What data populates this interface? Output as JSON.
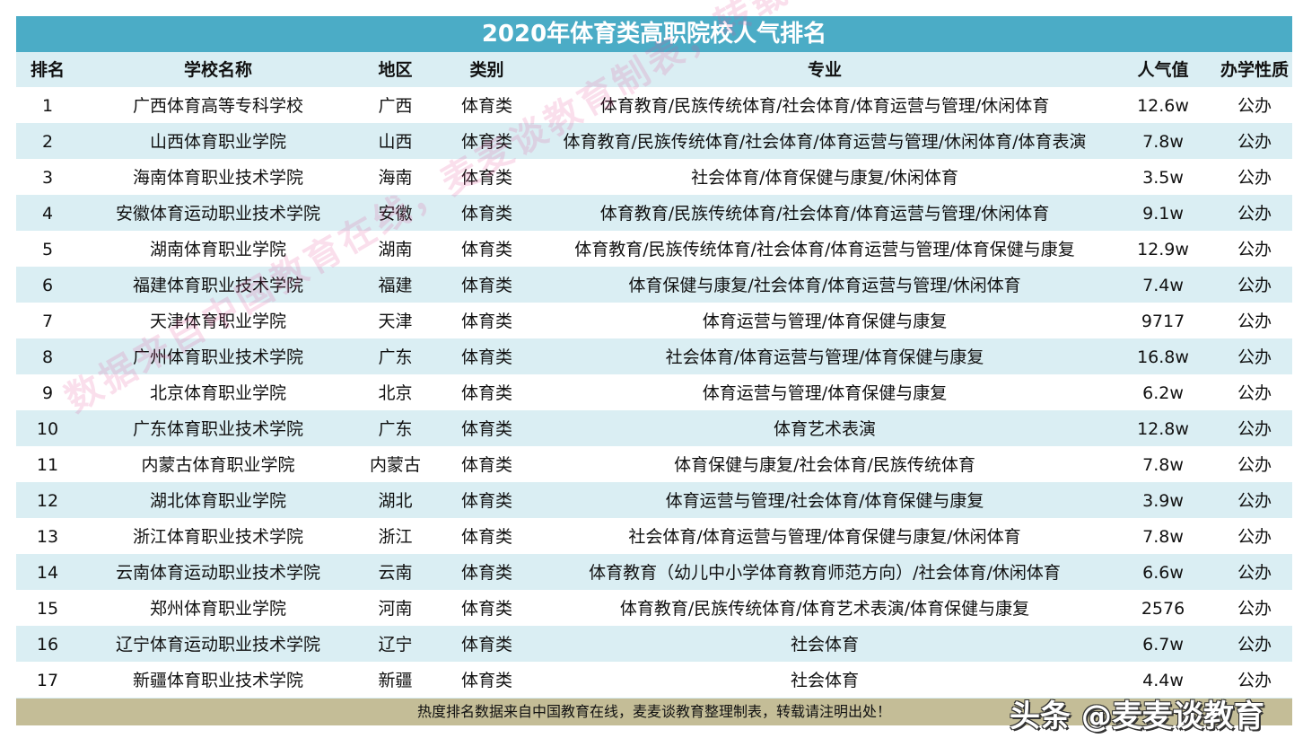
{
  "title": "2020年体育类高职院校人气排名",
  "headers": [
    "排名",
    "学校名称",
    "地区",
    "类别",
    "专业",
    "人气值",
    "办学性质"
  ],
  "rows": [
    [
      "1",
      "广西体育高等专科学校",
      "广西",
      "体育类",
      "体育教育/民族传统体育/社会体育/体育运营与管理/休闲体育",
      "12.6w",
      "公办"
    ],
    [
      "2",
      "山西体育职业学院",
      "山西",
      "体育类",
      "体育教育/民族传统体育/社会体育/体育运营与管理/休闲体育/体育表演",
      "7.8w",
      "公办"
    ],
    [
      "3",
      "海南体育职业技术学院",
      "海南",
      "体育类",
      "社会体育/体育保健与康复/休闲体育",
      "3.5w",
      "公办"
    ],
    [
      "4",
      "安徽体育运动职业技术学院",
      "安徽",
      "体育类",
      "体育教育/民族传统体育/社会体育/体育运营与管理/休闲体育",
      "9.1w",
      "公办"
    ],
    [
      "5",
      "湖南体育职业学院",
      "湖南",
      "体育类",
      "体育教育/民族传统体育/社会体育/体育运营与管理/体育保健与康复",
      "12.9w",
      "公办"
    ],
    [
      "6",
      "福建体育职业技术学院",
      "福建",
      "体育类",
      "体育保健与康复/社会体育/体育运营与管理/休闲体育",
      "7.4w",
      "公办"
    ],
    [
      "7",
      "天津体育职业学院",
      "天津",
      "体育类",
      "体育运营与管理/体育保健与康复",
      "9717",
      "公办"
    ],
    [
      "8",
      "广州体育职业技术学院",
      "广东",
      "体育类",
      "社会体育/体育运营与管理/体育保健与康复",
      "16.8w",
      "公办"
    ],
    [
      "9",
      "北京体育职业学院",
      "北京",
      "体育类",
      "体育运营与管理/体育保健与康复",
      "6.2w",
      "公办"
    ],
    [
      "10",
      "广东体育职业技术学院",
      "广东",
      "体育类",
      "体育艺术表演",
      "12.8w",
      "公办"
    ],
    [
      "11",
      "内蒙古体育职业学院",
      "内蒙古",
      "体育类",
      "体育保健与康复/社会体育/民族传统体育",
      "7.8w",
      "公办"
    ],
    [
      "12",
      "湖北体育职业学院",
      "湖北",
      "体育类",
      "体育运营与管理/社会体育/体育保健与康复",
      "3.9w",
      "公办"
    ],
    [
      "13",
      "浙江体育职业技术学院",
      "浙江",
      "体育类",
      "社会体育/体育运营与管理/体育保健与康复/休闲体育",
      "7.8w",
      "公办"
    ],
    [
      "14",
      "云南体育运动职业技术学院",
      "云南",
      "体育类",
      "体育教育（幼儿中小学体育教育师范方向）/社会体育/休闲体育",
      "6.6w",
      "公办"
    ],
    [
      "15",
      "郑州体育职业学院",
      "河南",
      "体育类",
      "体育教育/民族传统体育/体育艺术表演/体育保健与康复",
      "2576",
      "公办"
    ],
    [
      "16",
      "辽宁体育运动职业技术学院",
      "辽宁",
      "体育类",
      "社会体育",
      "6.7w",
      "公办"
    ],
    [
      "17",
      "新疆体育职业技术学院",
      "新疆",
      "体育类",
      "社会体育",
      "4.4w",
      "公办"
    ]
  ],
  "footer": "热度排名数据来自中国教育在线，麦麦谈教育整理制表，转载请注明出处！",
  "watermark": "数据来自中国教育在线，麦麦谈教育制表，转载请注明出处！",
  "brand": "头条 @麦麦谈教育",
  "colors": {
    "title_bg": "#4bacc6",
    "stripe": "#daeef3",
    "footer_bg": "#c4bd97"
  }
}
